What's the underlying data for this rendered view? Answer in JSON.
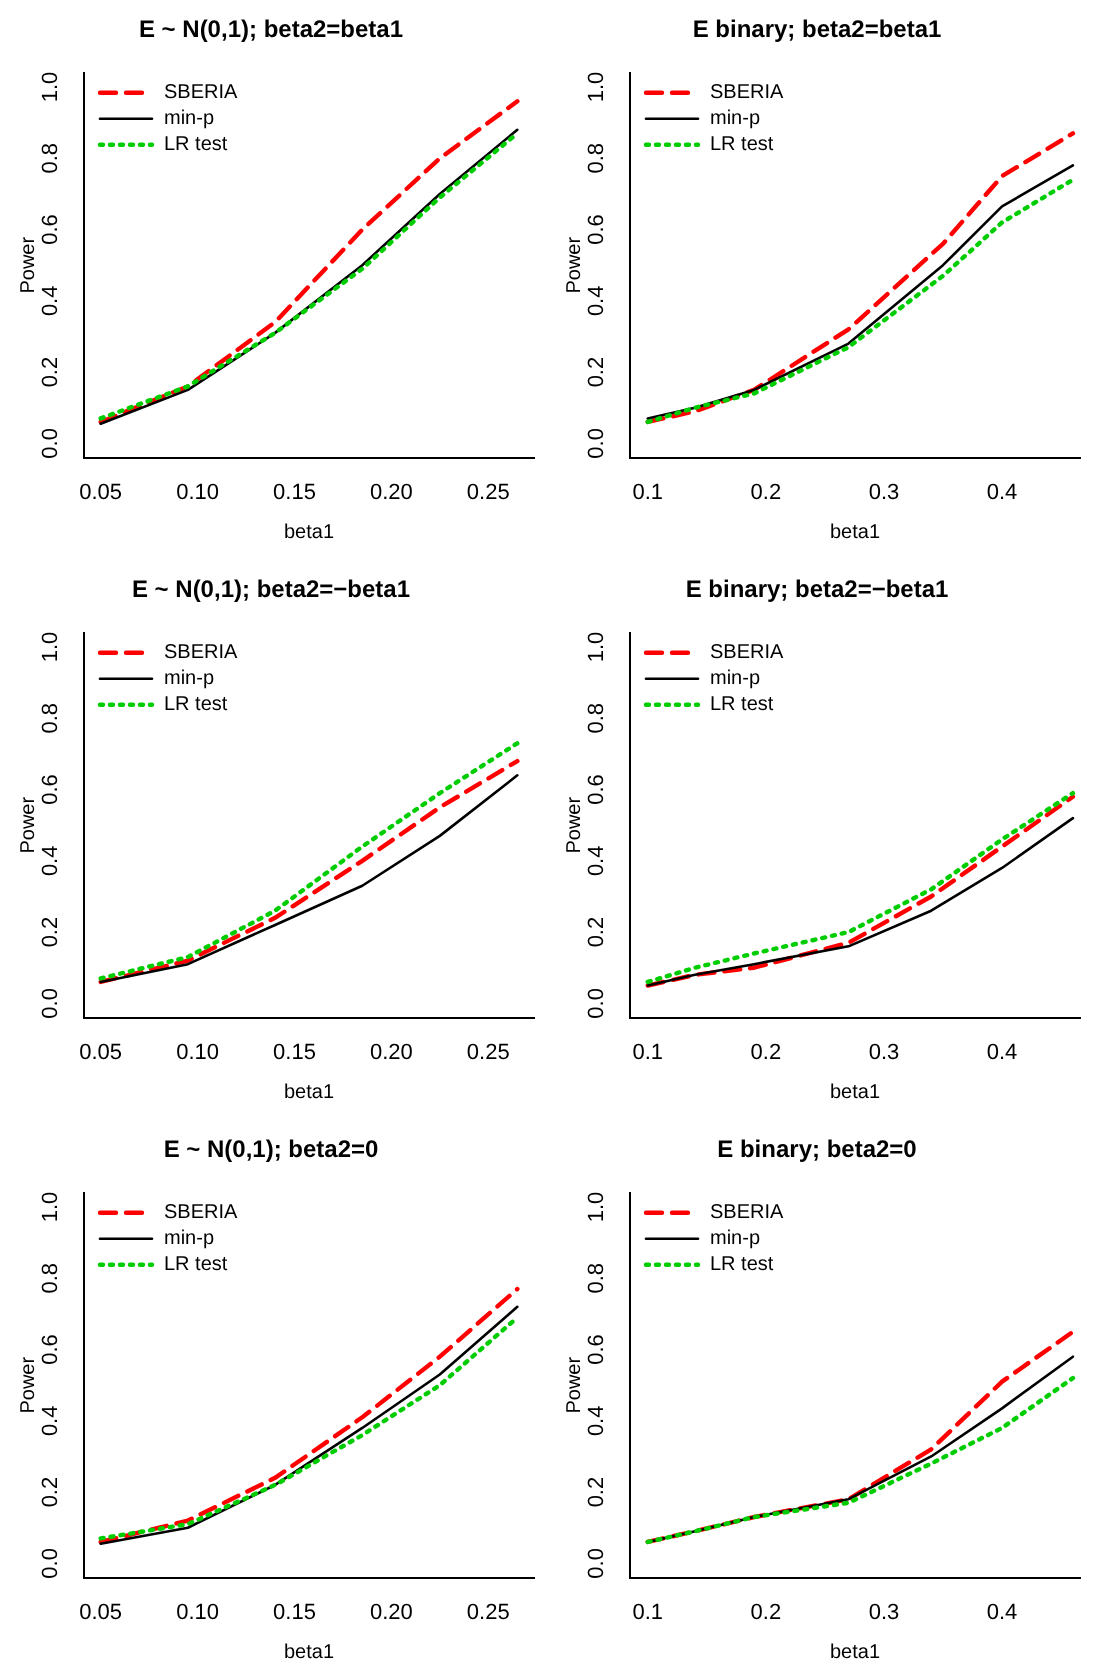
{
  "chart_data": [
    {
      "type": "line",
      "title": "E ~ N(0,1); beta2=beta1",
      "xlabel": "beta1",
      "ylabel": "Power",
      "legend": "top left",
      "grid": false,
      "x": [
        0.05,
        0.095,
        0.14,
        0.185,
        0.225,
        0.265
      ],
      "xlim": [
        0.0414,
        0.2736
      ],
      "xticks": [
        {
          "value": 0.05,
          "label": "0.05"
        },
        {
          "value": 0.1,
          "label": "0.10"
        },
        {
          "value": 0.15,
          "label": "0.15"
        },
        {
          "value": 0.2,
          "label": "0.20"
        },
        {
          "value": 0.25,
          "label": "0.25"
        }
      ],
      "ylim": [
        -0.04,
        1.04
      ],
      "yticks": [
        {
          "value": 0,
          "label": "0.0"
        },
        {
          "value": 0.2,
          "label": "0.2"
        },
        {
          "value": 0.4,
          "label": "0.4"
        },
        {
          "value": 0.6,
          "label": "0.6"
        },
        {
          "value": 0.8,
          "label": "0.8"
        },
        {
          "value": 1,
          "label": "1.0"
        }
      ],
      "series": [
        {
          "name": "SBERIA",
          "color": "#ff0000",
          "line_style": "dashed",
          "values": [
            0.06,
            0.16,
            0.34,
            0.6,
            0.8,
            0.96
          ]
        },
        {
          "name": "min-p",
          "color": "#000000",
          "line_style": "solid",
          "values": [
            0.055,
            0.15,
            0.31,
            0.5,
            0.7,
            0.88
          ]
        },
        {
          "name": "LR test",
          "color": "#00cd00",
          "line_style": "dotted",
          "values": [
            0.07,
            0.16,
            0.31,
            0.49,
            0.69,
            0.87
          ]
        }
      ]
    },
    {
      "type": "line",
      "title": "E binary; beta2=beta1",
      "xlabel": "beta1",
      "ylabel": "Power",
      "legend": "top left",
      "grid": false,
      "x": [
        0.1,
        0.14,
        0.19,
        0.27,
        0.35,
        0.4,
        0.46
      ],
      "xlim": [
        0.085,
        0.466
      ],
      "xticks": [
        0.1,
        0.2,
        0.3,
        0.4
      ],
      "ylim": [
        -0.04,
        1.04
      ],
      "yticks": [
        {
          "value": 0,
          "label": "0.0"
        },
        {
          "value": 0.2,
          "label": "0.2"
        },
        {
          "value": 0.4,
          "label": "0.4"
        },
        {
          "value": 0.6,
          "label": "0.6"
        },
        {
          "value": 0.8,
          "label": "0.8"
        },
        {
          "value": 1,
          "label": "1.0"
        }
      ],
      "series": [
        {
          "name": "SBERIA",
          "color": "#ff0000",
          "line_style": "dashed",
          "values": [
            0.06,
            0.09,
            0.15,
            0.32,
            0.56,
            0.75,
            0.87
          ]
        },
        {
          "name": "min-p",
          "color": "#000000",
          "line_style": "solid",
          "values": [
            0.07,
            0.1,
            0.15,
            0.28,
            0.5,
            0.665,
            0.78
          ]
        },
        {
          "name": "LR test",
          "color": "#00cd00",
          "line_style": "dotted",
          "values": [
            0.06,
            0.1,
            0.14,
            0.27,
            0.47,
            0.62,
            0.74
          ]
        }
      ]
    },
    {
      "type": "line",
      "title": "E ~ N(0,1); beta2=−beta1",
      "xlabel": "beta1",
      "ylabel": "Power",
      "legend": "top left",
      "grid": false,
      "x": [
        0.05,
        0.095,
        0.14,
        0.185,
        0.225,
        0.265
      ],
      "xlim": [
        0.0414,
        0.2736
      ],
      "xticks": [
        {
          "value": 0.05,
          "label": "0.05"
        },
        {
          "value": 0.1,
          "label": "0.10"
        },
        {
          "value": 0.15,
          "label": "0.15"
        },
        {
          "value": 0.2,
          "label": "0.20"
        },
        {
          "value": 0.25,
          "label": "0.25"
        }
      ],
      "ylim": [
        -0.04,
        1.04
      ],
      "yticks": [
        {
          "value": 0,
          "label": "0.0"
        },
        {
          "value": 0.2,
          "label": "0.2"
        },
        {
          "value": 0.4,
          "label": "0.4"
        },
        {
          "value": 0.6,
          "label": "0.6"
        },
        {
          "value": 0.8,
          "label": "0.8"
        },
        {
          "value": 1,
          "label": "1.0"
        }
      ],
      "series": [
        {
          "name": "SBERIA",
          "color": "#ff0000",
          "line_style": "dashed",
          "values": [
            0.06,
            0.12,
            0.24,
            0.4,
            0.55,
            0.68
          ]
        },
        {
          "name": "min-p",
          "color": "#000000",
          "line_style": "solid",
          "values": [
            0.06,
            0.11,
            0.22,
            0.33,
            0.47,
            0.64
          ]
        },
        {
          "name": "LR test",
          "color": "#00cd00",
          "line_style": "dotted",
          "values": [
            0.07,
            0.13,
            0.26,
            0.44,
            0.59,
            0.73
          ]
        }
      ]
    },
    {
      "type": "line",
      "title": "E binary; beta2=−beta1",
      "xlabel": "beta1",
      "ylabel": "Power",
      "legend": "top left",
      "grid": false,
      "x": [
        0.1,
        0.14,
        0.19,
        0.27,
        0.34,
        0.4,
        0.46
      ],
      "xlim": [
        0.085,
        0.466
      ],
      "xticks": [
        0.1,
        0.2,
        0.3,
        0.4
      ],
      "ylim": [
        -0.04,
        1.04
      ],
      "yticks": [
        {
          "value": 0,
          "label": "0.0"
        },
        {
          "value": 0.2,
          "label": "0.2"
        },
        {
          "value": 0.4,
          "label": "0.4"
        },
        {
          "value": 0.6,
          "label": "0.6"
        },
        {
          "value": 0.8,
          "label": "0.8"
        },
        {
          "value": 1,
          "label": "1.0"
        }
      ],
      "series": [
        {
          "name": "SBERIA",
          "color": "#ff0000",
          "line_style": "dashed",
          "values": [
            0.05,
            0.08,
            0.1,
            0.17,
            0.3,
            0.44,
            0.58
          ]
        },
        {
          "name": "min-p",
          "color": "#000000",
          "line_style": "solid",
          "values": [
            0.05,
            0.08,
            0.11,
            0.16,
            0.26,
            0.38,
            0.52
          ]
        },
        {
          "name": "LR test",
          "color": "#00cd00",
          "line_style": "dotted",
          "values": [
            0.06,
            0.1,
            0.14,
            0.2,
            0.32,
            0.46,
            0.59
          ]
        }
      ]
    },
    {
      "type": "line",
      "title": "E ~ N(0,1); beta2=0",
      "xlabel": "beta1",
      "ylabel": "Power",
      "legend": "top left",
      "grid": false,
      "x": [
        0.05,
        0.095,
        0.14,
        0.185,
        0.225,
        0.265
      ],
      "xlim": [
        0.0414,
        0.2736
      ],
      "xticks": [
        {
          "value": 0.05,
          "label": "0.05"
        },
        {
          "value": 0.1,
          "label": "0.10"
        },
        {
          "value": 0.15,
          "label": "0.15"
        },
        {
          "value": 0.2,
          "label": "0.20"
        },
        {
          "value": 0.25,
          "label": "0.25"
        }
      ],
      "ylim": [
        -0.04,
        1.04
      ],
      "yticks": [
        {
          "value": 0,
          "label": "0.0"
        },
        {
          "value": 0.2,
          "label": "0.2"
        },
        {
          "value": 0.4,
          "label": "0.4"
        },
        {
          "value": 0.6,
          "label": "0.6"
        },
        {
          "value": 0.8,
          "label": "0.8"
        },
        {
          "value": 1,
          "label": "1.0"
        }
      ],
      "series": [
        {
          "name": "SBERIA",
          "color": "#ff0000",
          "line_style": "dashed",
          "values": [
            0.06,
            0.12,
            0.24,
            0.41,
            0.58,
            0.77
          ]
        },
        {
          "name": "min-p",
          "color": "#000000",
          "line_style": "solid",
          "values": [
            0.055,
            0.1,
            0.22,
            0.38,
            0.53,
            0.72
          ]
        },
        {
          "name": "LR test",
          "color": "#00cd00",
          "line_style": "dotted",
          "values": [
            0.07,
            0.11,
            0.22,
            0.36,
            0.5,
            0.69
          ]
        }
      ]
    },
    {
      "type": "line",
      "title": "E binary; beta2=0",
      "xlabel": "beta1",
      "ylabel": "Power",
      "legend": "top left",
      "grid": false,
      "x": [
        0.1,
        0.14,
        0.19,
        0.27,
        0.34,
        0.4,
        0.46
      ],
      "xlim": [
        0.085,
        0.466
      ],
      "xticks": [
        0.1,
        0.2,
        0.3,
        0.4
      ],
      "ylim": [
        -0.04,
        1.04
      ],
      "yticks": [
        {
          "value": 0,
          "label": "0.0"
        },
        {
          "value": 0.2,
          "label": "0.2"
        },
        {
          "value": 0.4,
          "label": "0.4"
        },
        {
          "value": 0.6,
          "label": "0.6"
        },
        {
          "value": 0.8,
          "label": "0.8"
        },
        {
          "value": 1,
          "label": "1.0"
        }
      ],
      "series": [
        {
          "name": "SBERIA",
          "color": "#ff0000",
          "line_style": "dashed",
          "values": [
            0.06,
            0.09,
            0.13,
            0.18,
            0.32,
            0.51,
            0.65
          ]
        },
        {
          "name": "min-p",
          "color": "#000000",
          "line_style": "solid",
          "values": [
            0.06,
            0.09,
            0.13,
            0.18,
            0.3,
            0.435,
            0.58
          ]
        },
        {
          "name": "LR test",
          "color": "#00cd00",
          "line_style": "dotted",
          "values": [
            0.06,
            0.09,
            0.13,
            0.17,
            0.28,
            0.38,
            0.52
          ]
        }
      ]
    }
  ]
}
